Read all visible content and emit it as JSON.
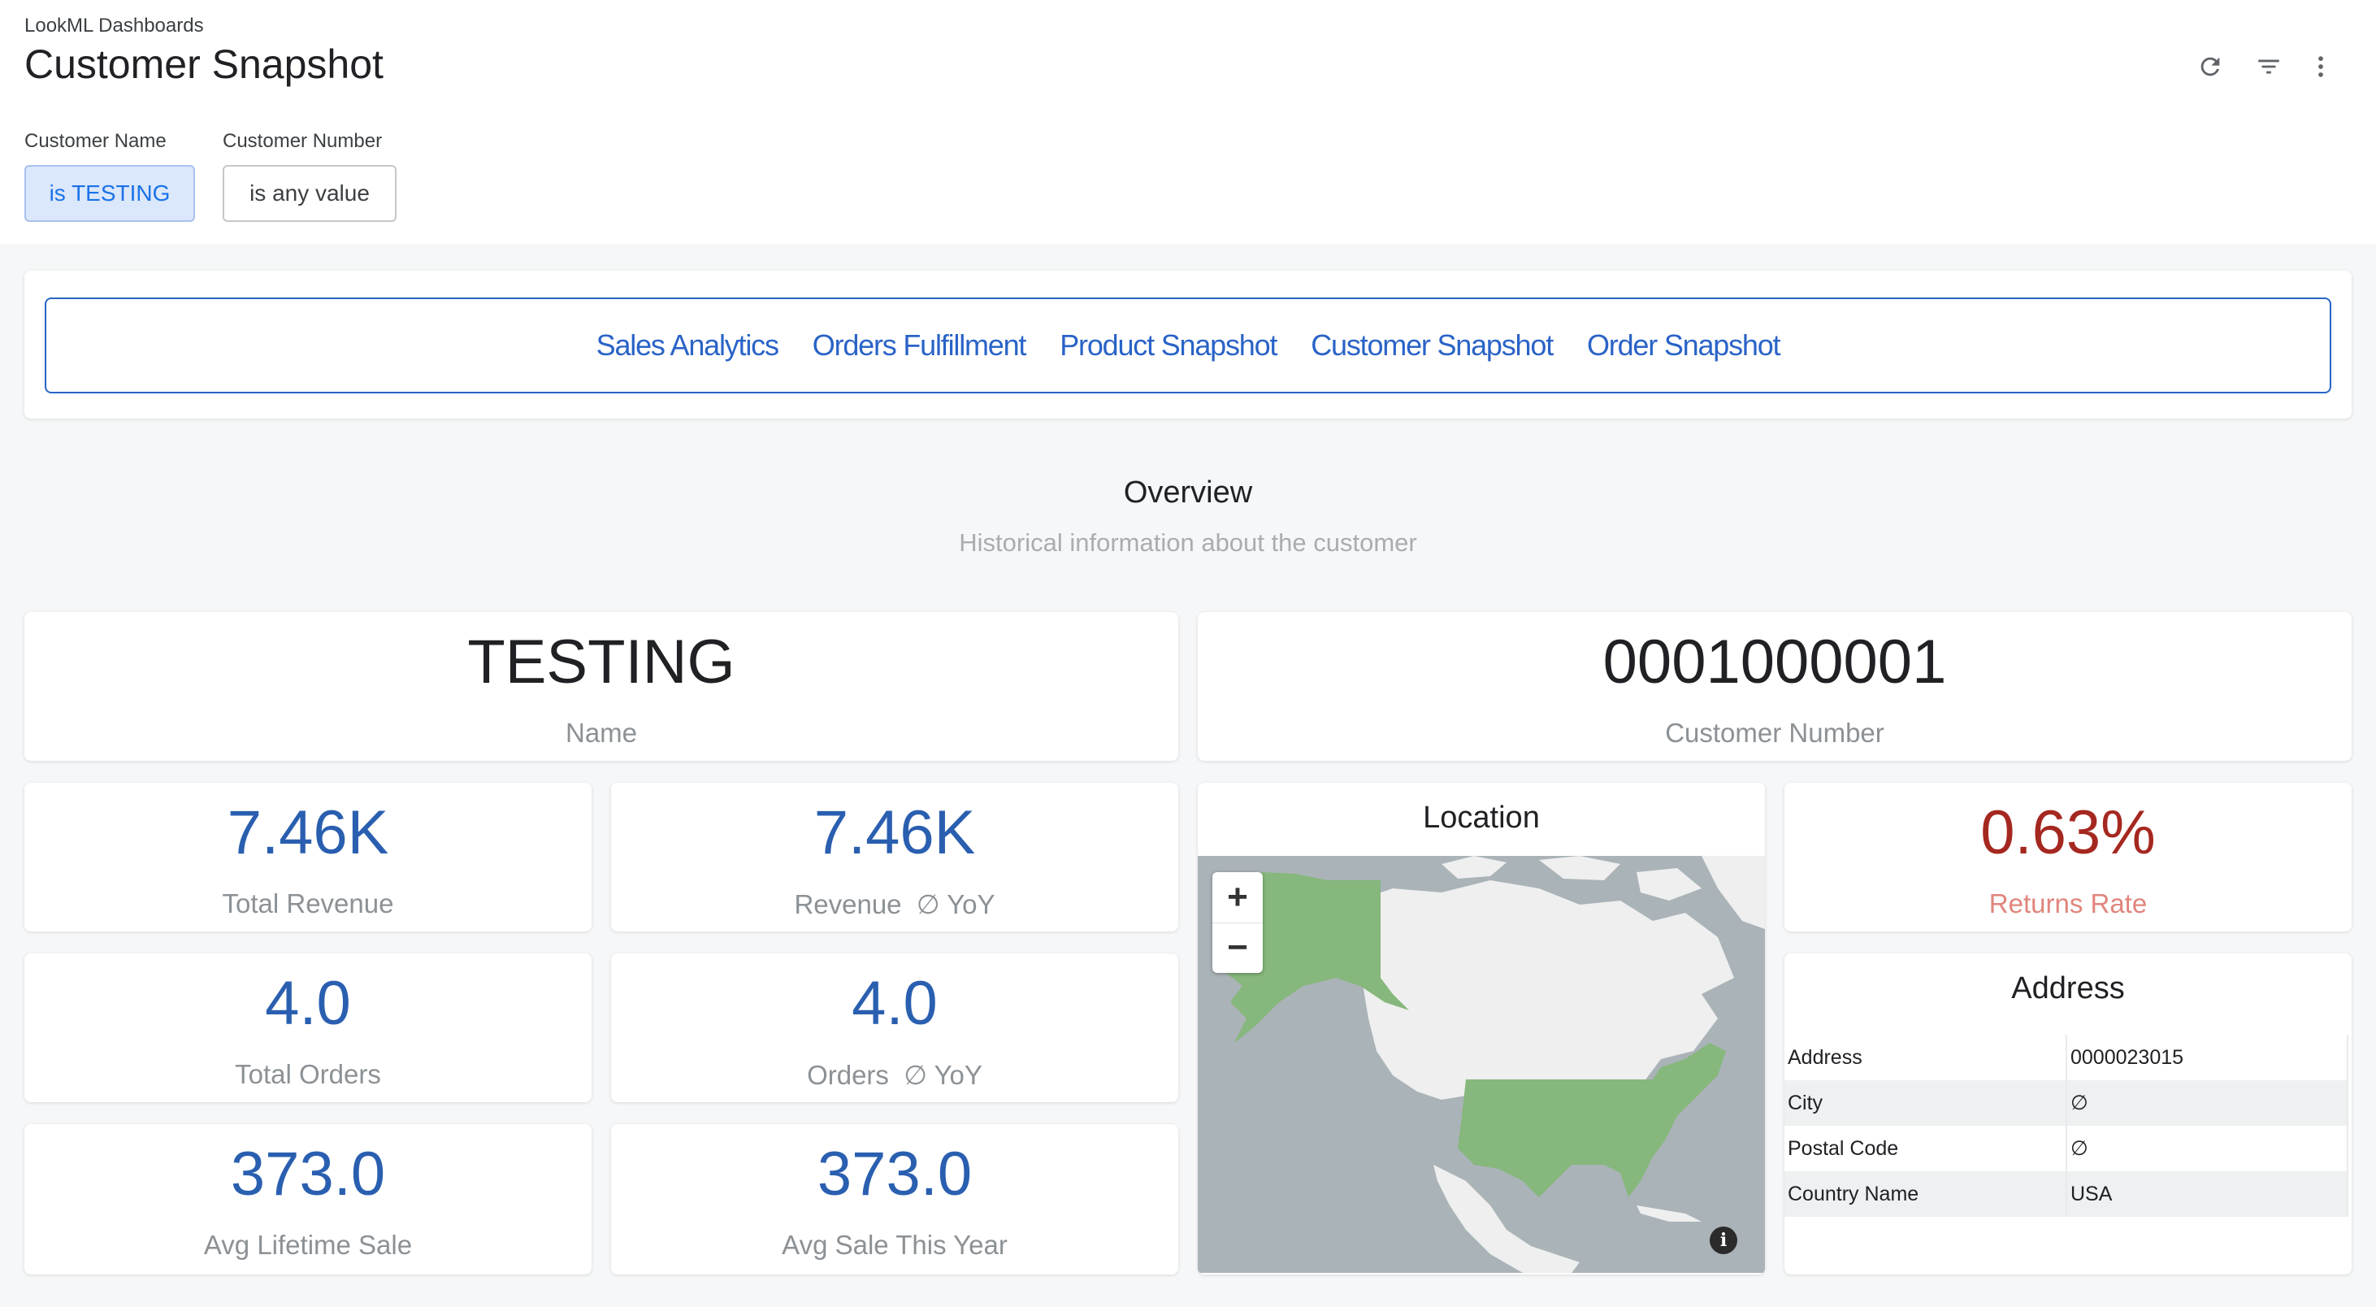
{
  "header": {
    "breadcrumb": "LookML Dashboards",
    "title": "Customer Snapshot",
    "icons": [
      "refresh-icon",
      "filter-icon",
      "more-vert-icon"
    ]
  },
  "filters": [
    {
      "label": "Customer Name",
      "value": "is TESTING",
      "active": true
    },
    {
      "label": "Customer Number",
      "value": "is any value",
      "active": false
    }
  ],
  "nav": {
    "links": [
      "Sales Analytics",
      "Orders Fulfillment",
      "Product Snapshot",
      "Customer Snapshot",
      "Order Snapshot"
    ]
  },
  "overview": {
    "title": "Overview",
    "subtitle": "Historical information about the customer"
  },
  "tiles": {
    "name": {
      "value": "TESTING",
      "label": "Name"
    },
    "customer_number": {
      "value": "0001000001",
      "label": "Customer Number"
    },
    "total_revenue": {
      "value": "7.46K",
      "label": "Total Revenue"
    },
    "revenue_yoy": {
      "value": "7.46K",
      "label": "Revenue  ∅ YoY"
    },
    "total_orders": {
      "value": "4.0",
      "label": "Total Orders"
    },
    "orders_yoy": {
      "value": "4.0",
      "label": "Orders  ∅ YoY"
    },
    "avg_lifetime_sale": {
      "value": "373.0",
      "label": "Avg Lifetime Sale"
    },
    "avg_sale_this_year": {
      "value": "373.0",
      "label": "Avg Sale This Year"
    },
    "returns_rate": {
      "value": "0.63%",
      "label": "Returns Rate"
    }
  },
  "location": {
    "title": "Location",
    "zoom_in": "+",
    "zoom_out": "−",
    "info": "i"
  },
  "address": {
    "title": "Address",
    "rows": [
      {
        "field": "Address",
        "value": "0000023015"
      },
      {
        "field": "City",
        "value": "∅"
      },
      {
        "field": "Postal Code",
        "value": "∅"
      },
      {
        "field": "Country Name",
        "value": "USA"
      }
    ]
  },
  "colors": {
    "accent_blue": "#2a63c7",
    "kpi_blue": "#2a5fb0",
    "returns_red": "#a52820",
    "map_highlight": "#86b77c"
  }
}
